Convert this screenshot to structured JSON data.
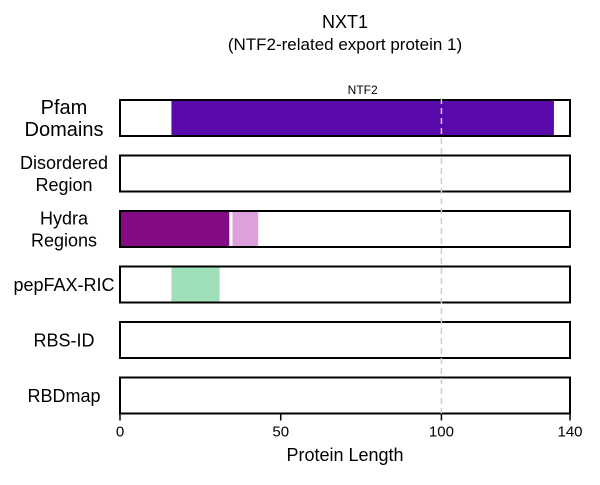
{
  "chart_data": {
    "type": "bar",
    "title": "NXT1",
    "subtitle": "(NTF2-related export protein 1)",
    "xlabel": "Protein Length",
    "ylabel": "",
    "xlim": [
      0,
      140
    ],
    "xticks": [
      0,
      50,
      100,
      140
    ],
    "grid": false,
    "reference_line": {
      "x": 100,
      "style": "dashed",
      "color": "#cccccc"
    },
    "tracks": [
      {
        "label": "Pfam\nDomains",
        "segments": [
          {
            "start": 16,
            "end": 135,
            "color": "#5a0aaa",
            "label": "NTF2"
          }
        ]
      },
      {
        "label": "Disordered\nRegion",
        "segments": []
      },
      {
        "label": "Hydra\nRegions",
        "segments": [
          {
            "start": 0,
            "end": 34,
            "color": "#850a85"
          },
          {
            "start": 35,
            "end": 43,
            "color": "#dda0dd"
          }
        ]
      },
      {
        "label": "pepFAX-RIC",
        "segments": [
          {
            "start": 16,
            "end": 31,
            "color": "#a0e0b8"
          }
        ]
      },
      {
        "label": "RBS-ID",
        "segments": []
      },
      {
        "label": "RBDmap",
        "segments": []
      }
    ]
  }
}
